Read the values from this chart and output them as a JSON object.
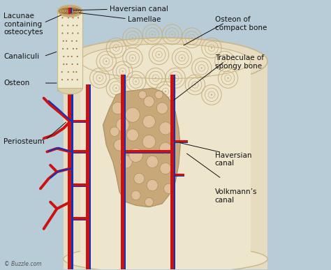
{
  "background_color": "#b8ccd8",
  "bone_color": "#e8dcc0",
  "bone_inner": "#ede5cc",
  "bone_edge": "#c8b888",
  "spongy_fill": "#c8a878",
  "spongy_hole": "#dfc09a",
  "spongy_edge": "#a89060",
  "osteon_ring": "#c8b080",
  "osteon_center": "#d0b888",
  "blood_red": "#cc1111",
  "blood_blue": "#1133bb",
  "text_color": "#111111",
  "label_fontsize": 7.5,
  "title": "© Buzzle.com",
  "labels": {
    "lacunae": "Lacunae\ncontaining\nosteocytes",
    "haversian_top": "Haversian canal",
    "lamellae": "Lamellae",
    "canaliculi": "Canaliculi",
    "osteon_label": "Osteon",
    "periosteum": "Periosteum",
    "osteon_compact": "Osteon of\ncompact bone",
    "trabeculae": "Trabeculae of\nspongy bone",
    "haversian_bottom": "Haversian\ncanal",
    "volkmann": "Volkmann’s\ncanal"
  }
}
